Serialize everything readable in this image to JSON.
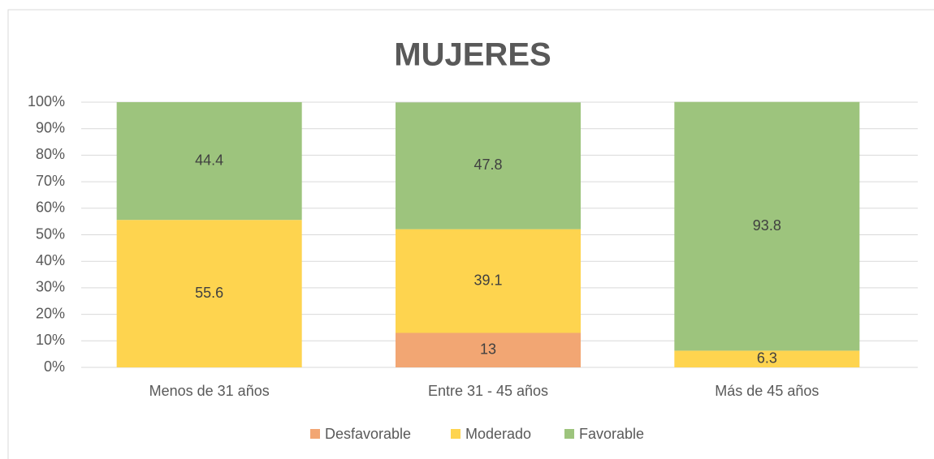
{
  "chart_data": {
    "type": "stacked_bar",
    "title": "MUJERES",
    "categories": [
      "Menos de 31 años",
      "Entre 31 - 45 años",
      "Más de 45 años"
    ],
    "series": [
      {
        "name": "Desfavorable",
        "color": "#f2a673",
        "values": [
          null,
          13,
          null
        ]
      },
      {
        "name": "Moderado",
        "color": "#fed44f",
        "values": [
          55.6,
          39.1,
          6.3
        ]
      },
      {
        "name": "Favorable",
        "color": "#9dc47d",
        "values": [
          44.4,
          47.8,
          93.8
        ]
      }
    ],
    "ylim": [
      0,
      100
    ],
    "yticks": [
      {
        "value": 0,
        "label": "0%"
      },
      {
        "value": 10,
        "label": "10%"
      },
      {
        "value": 20,
        "label": "20%"
      },
      {
        "value": 30,
        "label": "30%"
      },
      {
        "value": 40,
        "label": "40%"
      },
      {
        "value": 50,
        "label": "50%"
      },
      {
        "value": 60,
        "label": "60%"
      },
      {
        "value": 70,
        "label": "70%"
      },
      {
        "value": 80,
        "label": "80%"
      },
      {
        "value": 90,
        "label": "90%"
      },
      {
        "value": 100,
        "label": "100%"
      }
    ],
    "grid": true,
    "legend": "bottom"
  }
}
